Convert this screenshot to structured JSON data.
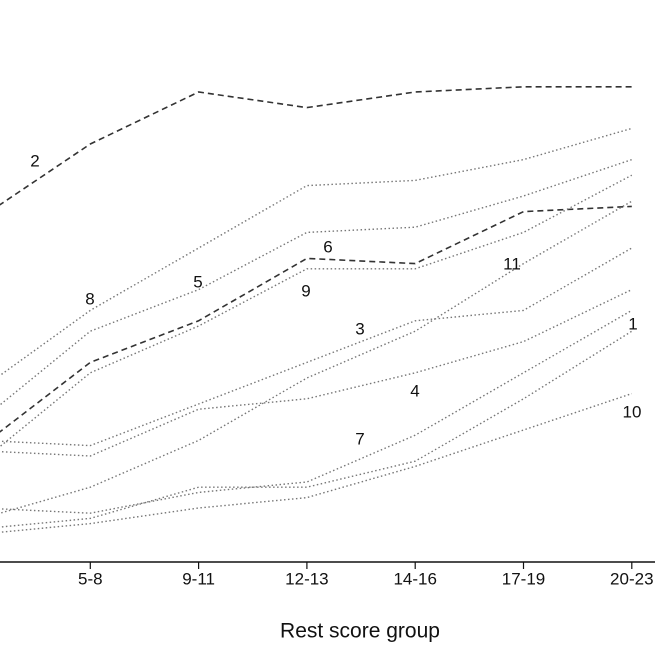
{
  "chart_data": {
    "type": "line",
    "x_label": "Rest score group",
    "categories": [
      null,
      "5-8",
      "9-11",
      "12-13",
      "14-16",
      "17-19",
      "20-23"
    ],
    "ylim": [
      0,
      1
    ],
    "series": [
      {
        "name": "1",
        "color": "#777777",
        "values": [
          0.06,
          0.08,
          0.14,
          0.14,
          0.19,
          0.31,
          0.44
        ]
      },
      {
        "name": "2",
        "color": "#333333",
        "values": [
          0.66,
          0.8,
          0.9,
          0.87,
          0.9,
          0.91,
          0.91
        ]
      },
      {
        "name": "3",
        "color": "#777777",
        "values": [
          0.23,
          0.22,
          0.3,
          0.38,
          0.46,
          0.48,
          0.6
        ]
      },
      {
        "name": "4",
        "color": "#777777",
        "values": [
          0.21,
          0.2,
          0.29,
          0.31,
          0.36,
          0.42,
          0.52
        ]
      },
      {
        "name": "5",
        "color": "#777777",
        "values": [
          0.27,
          0.44,
          0.52,
          0.63,
          0.64,
          0.7,
          0.77
        ]
      },
      {
        "name": "6",
        "color": "#333333",
        "values": [
          0.22,
          0.38,
          0.46,
          0.58,
          0.57,
          0.67,
          0.68
        ]
      },
      {
        "name": "7",
        "color": "#777777",
        "values": [
          0.1,
          0.09,
          0.13,
          0.15,
          0.24,
          0.36,
          0.48
        ]
      },
      {
        "name": "8",
        "color": "#777777",
        "values": [
          0.33,
          0.48,
          0.6,
          0.72,
          0.73,
          0.77,
          0.83
        ]
      },
      {
        "name": "9",
        "color": "#777777",
        "values": [
          0.19,
          0.36,
          0.45,
          0.56,
          0.56,
          0.63,
          0.74
        ]
      },
      {
        "name": "10",
        "color": "#777777",
        "values": [
          0.05,
          0.07,
          0.1,
          0.12,
          0.18,
          0.25,
          0.32
        ]
      },
      {
        "name": "11",
        "color": "#777777",
        "values": [
          0.08,
          0.14,
          0.23,
          0.35,
          0.44,
          0.57,
          0.69
        ]
      }
    ]
  }
}
